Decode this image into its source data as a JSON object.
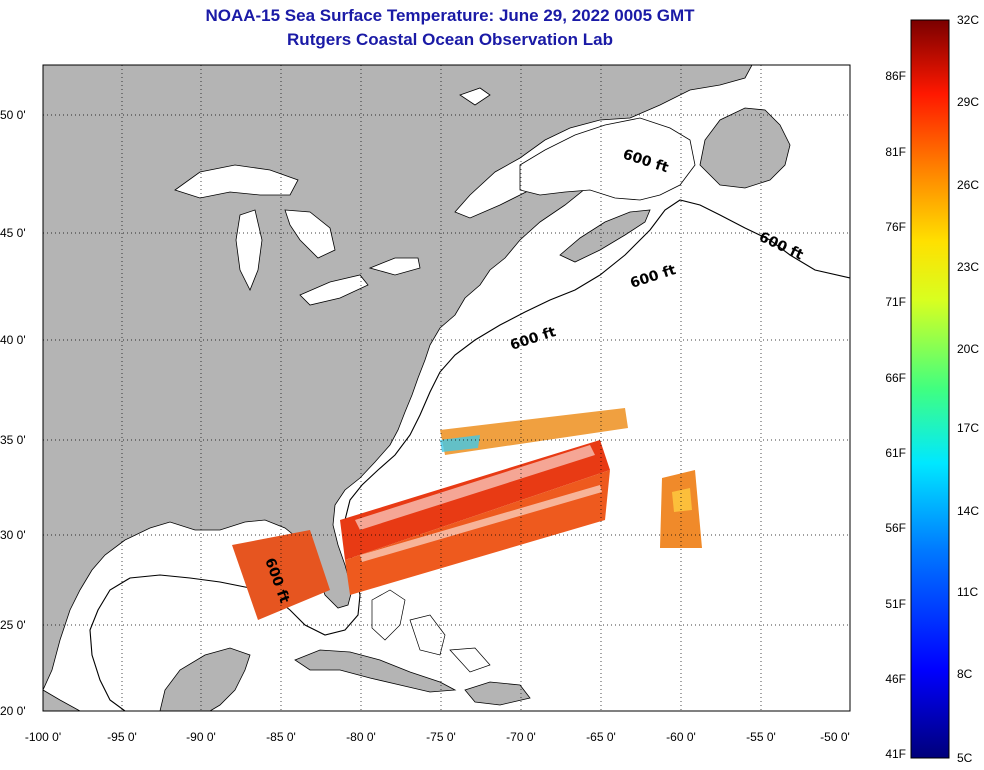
{
  "title": "NOAA-15 Sea Surface Temperature:  June 29, 2022 0005 GMT",
  "subtitle": "Rutgers Coastal Ocean Observation Lab",
  "map": {
    "lon_ticks": [
      "-100 0'",
      "-95 0'",
      "-90 0'",
      "-85 0'",
      "-80 0'",
      "-75 0'",
      "-70 0'",
      "-65 0'",
      "-60 0'",
      "-55 0'",
      "-50 0'"
    ],
    "lat_ticks": [
      "50 0'",
      "45 0'",
      "40 0'",
      "35 0'",
      "30 0'",
      "25 0'",
      "20 0'"
    ],
    "isobath_label": "600 ft",
    "land_color": "#b4b4b4",
    "ocean_color": "#ffffff"
  },
  "colorbar": {
    "celsius": [
      "32C",
      "29C",
      "26C",
      "23C",
      "20C",
      "17C",
      "14C",
      "11C",
      "8C",
      "5C"
    ],
    "fahrenheit": [
      "86F",
      "81F",
      "76F",
      "71F",
      "66F",
      "61F",
      "56F",
      "51F",
      "46F",
      "41F"
    ],
    "colors": [
      "#800000",
      "#c00000",
      "#ff2000",
      "#ff7000",
      "#ffb000",
      "#ffee00",
      "#b0ff40",
      "#40ff90",
      "#00ffee",
      "#00b0ff",
      "#0060ff",
      "#0010ff",
      "#0000a0"
    ]
  }
}
